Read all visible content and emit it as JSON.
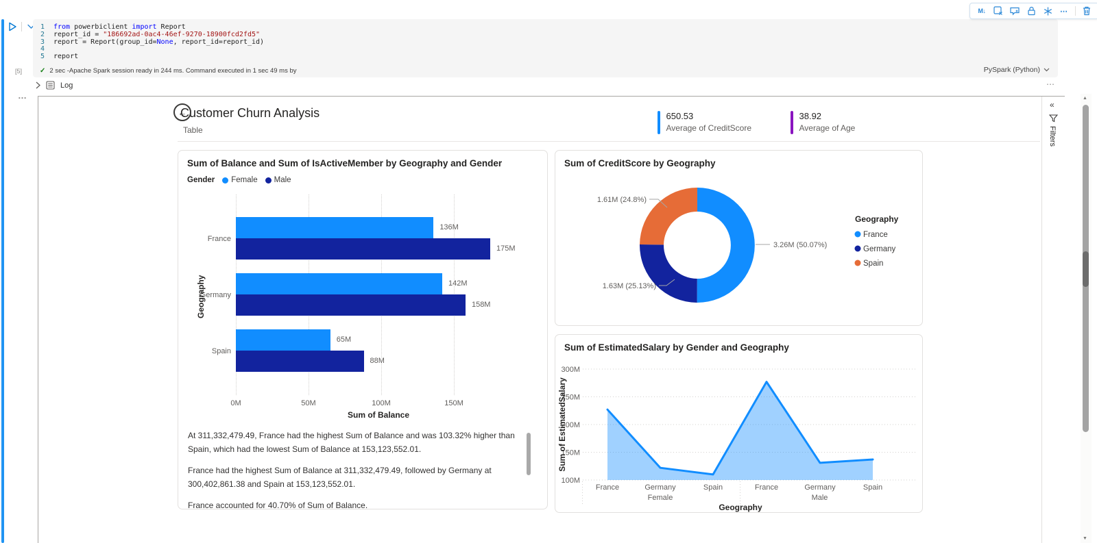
{
  "notebook": {
    "toolbar": {
      "icons": [
        "convert-to-markdown",
        "clear-output",
        "add-comment",
        "lock-cell",
        "freeze-cell",
        "more-options",
        "delete-cell"
      ]
    },
    "execution_count": "[5]",
    "code": {
      "lines": [
        {
          "num": "1",
          "tokens": [
            [
              "k",
              "from"
            ],
            [
              "p",
              " powerbiclient "
            ],
            [
              "k",
              "import"
            ],
            [
              "p",
              " Report"
            ]
          ]
        },
        {
          "num": "2",
          "tokens": [
            [
              "p",
              "report_id = "
            ],
            [
              "s",
              "\"186692ad-0ac4-46ef-9270-18900fcd2fd5\""
            ]
          ]
        },
        {
          "num": "3",
          "tokens": [
            [
              "p",
              "report = Report(group_id="
            ],
            [
              "k",
              "None"
            ],
            [
              "p",
              ", report_id=report_id)"
            ]
          ]
        },
        {
          "num": "4",
          "tokens": []
        },
        {
          "num": "5",
          "tokens": [
            [
              "p",
              "report"
            ]
          ]
        }
      ]
    },
    "status_text": "2 sec -Apache Spark session ready in 244 ms. Command executed in 1 sec 49 ms by",
    "kernel_label": "PySpark (Python)",
    "log_label": "Log"
  },
  "report": {
    "title": "Customer Churn Analysis",
    "subtitle": "Table",
    "kpis": [
      {
        "value": "650.53",
        "label": "Average of CreditScore",
        "color": "#118DFF"
      },
      {
        "value": "38.92",
        "label": "Average of Age",
        "color": "#8A15C0"
      }
    ],
    "filters_label": "Filters",
    "narrative_paragraphs": [
      "At 311,332,479.49, France had the highest Sum of Balance and was 103.32% higher than Spain, which had the lowest Sum of Balance at 153,123,552.01.",
      "France had the highest Sum of Balance at 311,332,479.49, followed by Germany at 300,402,861.38 and Spain at 153,123,552.01.",
      "France accounted for 40.70% of Sum of Balance."
    ]
  },
  "chart_data": [
    {
      "type": "bar",
      "orientation": "horizontal",
      "title": "Sum of Balance and Sum of IsActiveMember by Geography and Gender",
      "legend_title": "Gender",
      "categories": [
        "France",
        "Germany",
        "Spain"
      ],
      "series": [
        {
          "name": "Female",
          "color": "#118DFF",
          "values": [
            136,
            142,
            65
          ],
          "labels": [
            "136M",
            "142M",
            "65M"
          ]
        },
        {
          "name": "Male",
          "color": "#12239E",
          "values": [
            175,
            158,
            88
          ],
          "labels": [
            "175M",
            "158M",
            "88M"
          ]
        }
      ],
      "unit": "M",
      "xlabel": "Sum of Balance",
      "ylabel": "Geography",
      "xlim": [
        0,
        200
      ],
      "x_ticks": [
        {
          "v": 0,
          "label": "0M"
        },
        {
          "v": 50,
          "label": "50M"
        },
        {
          "v": 100,
          "label": "100M"
        },
        {
          "v": 150,
          "label": "150M"
        }
      ],
      "grid": "dotted-vertical"
    },
    {
      "type": "pie",
      "subtype": "donut",
      "title": "Sum of CreditScore by Geography",
      "legend_title": "Geography",
      "legend_position": "right",
      "slices": [
        {
          "label": "France",
          "value": 3.26,
          "pct": 50.07,
          "callout": "3.26M (50.07%)",
          "color": "#118DFF"
        },
        {
          "label": "Germany",
          "value": 1.63,
          "pct": 25.13,
          "callout": "1.63M (25.13%)",
          "color": "#12239E"
        },
        {
          "label": "Spain",
          "value": 1.61,
          "pct": 24.8,
          "callout": "1.61M (24.8%)",
          "color": "#E66C37"
        }
      ]
    },
    {
      "type": "area",
      "title": "Sum of EstimatedSalary by Gender and Geography",
      "x": [
        "France",
        "Germany",
        "Spain",
        "France",
        "Germany",
        "Spain"
      ],
      "group_labels": [
        {
          "label": "Female",
          "span": [
            0,
            2
          ]
        },
        {
          "label": "Male",
          "span": [
            3,
            5
          ]
        }
      ],
      "values": [
        227,
        122,
        110,
        277,
        131,
        137
      ],
      "unit": "M",
      "xlabel": "Geography",
      "ylabel": "Sum of EstimatedSalary",
      "ylim": [
        100,
        300
      ],
      "y_ticks": [
        {
          "v": 300,
          "label": "300M"
        },
        {
          "v": 250,
          "label": "250M"
        },
        {
          "v": 200,
          "label": "200M"
        },
        {
          "v": 150,
          "label": "150M"
        },
        {
          "v": 100,
          "label": "100M"
        }
      ],
      "color": "#118DFF",
      "fill_opacity": 0.4,
      "grid": "dotted-horizontal"
    }
  ]
}
